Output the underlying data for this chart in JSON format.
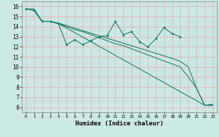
{
  "xlabel": "Humidex (Indice chaleur)",
  "xlim": [
    -0.5,
    23.5
  ],
  "ylim": [
    5.5,
    16.5
  ],
  "xticks": [
    0,
    1,
    2,
    3,
    4,
    5,
    6,
    7,
    8,
    9,
    10,
    11,
    12,
    13,
    14,
    15,
    16,
    17,
    18,
    19,
    20,
    21,
    22,
    23
  ],
  "yticks": [
    6,
    7,
    8,
    9,
    10,
    11,
    12,
    13,
    14,
    15,
    16
  ],
  "bg_color": "#cce8e4",
  "grid_color": "#e8a8a8",
  "line_color": "#1a7a6a",
  "line1_x": [
    0,
    1,
    2,
    3,
    4,
    5,
    6,
    7,
    8,
    9,
    10,
    11,
    12,
    13,
    14,
    15,
    16,
    17,
    18,
    19,
    20,
    21,
    22,
    23
  ],
  "line1_y": [
    15.75,
    15.75,
    14.5,
    14.5,
    14.35,
    14.1,
    13.85,
    13.6,
    13.35,
    13.1,
    12.85,
    12.6,
    12.35,
    12.1,
    11.85,
    11.6,
    11.35,
    11.1,
    10.85,
    10.55,
    10.0,
    7.9,
    6.2,
    6.2
  ],
  "line2_x": [
    0,
    1,
    2,
    3,
    4,
    5,
    6,
    7,
    8,
    9,
    10,
    11,
    12,
    13,
    14,
    15,
    16,
    17,
    18,
    19,
    20,
    21,
    22,
    23
  ],
  "line2_y": [
    15.75,
    15.6,
    14.5,
    14.5,
    14.3,
    12.2,
    12.7,
    12.2,
    12.6,
    13.0,
    13.1,
    14.5,
    13.2,
    13.5,
    12.5,
    12.0,
    12.8,
    13.9,
    13.3,
    13.0,
    null,
    null,
    null,
    null
  ],
  "line3_x": [
    1,
    2,
    3,
    4,
    22,
    23
  ],
  "line3_y": [
    15.6,
    14.5,
    14.5,
    14.3,
    6.2,
    6.3
  ],
  "line4_x": [
    0,
    1,
    2,
    3,
    4,
    5,
    6,
    7,
    8,
    9,
    10,
    11,
    12,
    13,
    14,
    15,
    16,
    17,
    18,
    19,
    20,
    21,
    22,
    23
  ],
  "line4_y": [
    15.75,
    15.6,
    14.5,
    14.5,
    14.3,
    14.0,
    13.7,
    13.5,
    13.2,
    12.9,
    12.6,
    12.3,
    12.1,
    11.8,
    11.5,
    11.2,
    10.9,
    10.6,
    10.3,
    10.0,
    9.0,
    7.9,
    6.2,
    6.2
  ]
}
